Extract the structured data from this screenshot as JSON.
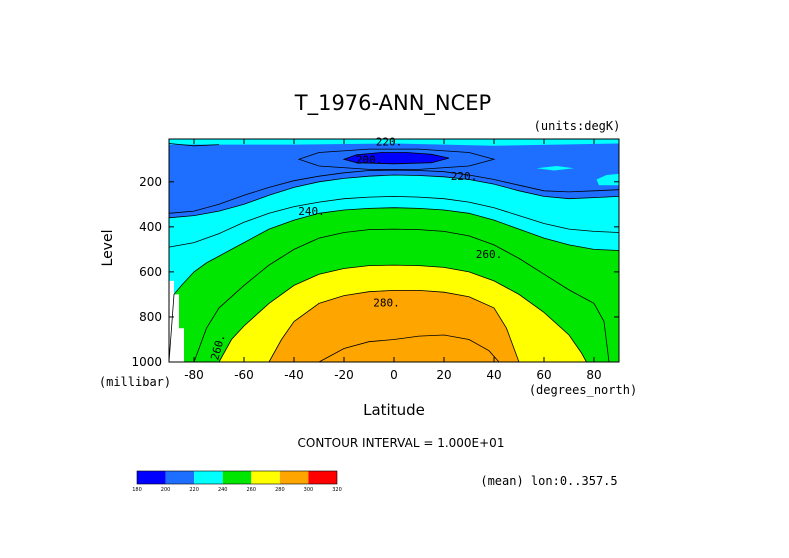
{
  "chart_data": {
    "type": "heatmap",
    "title": "T_1976-ANN_NCEP",
    "units_note": "(units:degK)",
    "xlabel": "Latitude",
    "ylabel": "Level",
    "x_units": "(degrees_north)",
    "y_units": "(millibar)",
    "xlim": [
      -90,
      90
    ],
    "ylim": [
      1000,
      10
    ],
    "y_reversed": true,
    "x_ticks": [
      -80,
      -60,
      -40,
      -20,
      0,
      20,
      40,
      60,
      80
    ],
    "y_ticks": [
      200,
      400,
      600,
      800,
      1000
    ],
    "contour_interval_text": "CONTOUR INTERVAL = 1.000E+01",
    "mean_note": "(mean) lon:0..357.5",
    "contour_labels": [
      {
        "text": "220.",
        "x": -2,
        "y": 22
      },
      {
        "text": "200.",
        "x": -10,
        "y": 100
      },
      {
        "text": "220.",
        "x": 28,
        "y": 175
      },
      {
        "text": "240.",
        "x": -33,
        "y": 330
      },
      {
        "text": "260.",
        "x": 38,
        "y": 520
      },
      {
        "text": "280.",
        "x": -3,
        "y": 735
      },
      {
        "text": "260.",
        "x": -69,
        "y": 920
      }
    ],
    "colorbar": {
      "labels": [
        "180",
        "200",
        "220",
        "240",
        "260",
        "280",
        "300",
        "320"
      ],
      "colors": [
        "#0000ff",
        "#1e6eff",
        "#00ffff",
        "#00e600",
        "#ffff00",
        "#ffa500",
        "#ff0000"
      ]
    },
    "fill_colors": {
      "c200": "#0000ff",
      "c220": "#1e6eff",
      "c240": "#00ffff",
      "c260": "#00e600",
      "c280": "#ffff00",
      "c300": "#ffa500"
    },
    "grid": false
  }
}
